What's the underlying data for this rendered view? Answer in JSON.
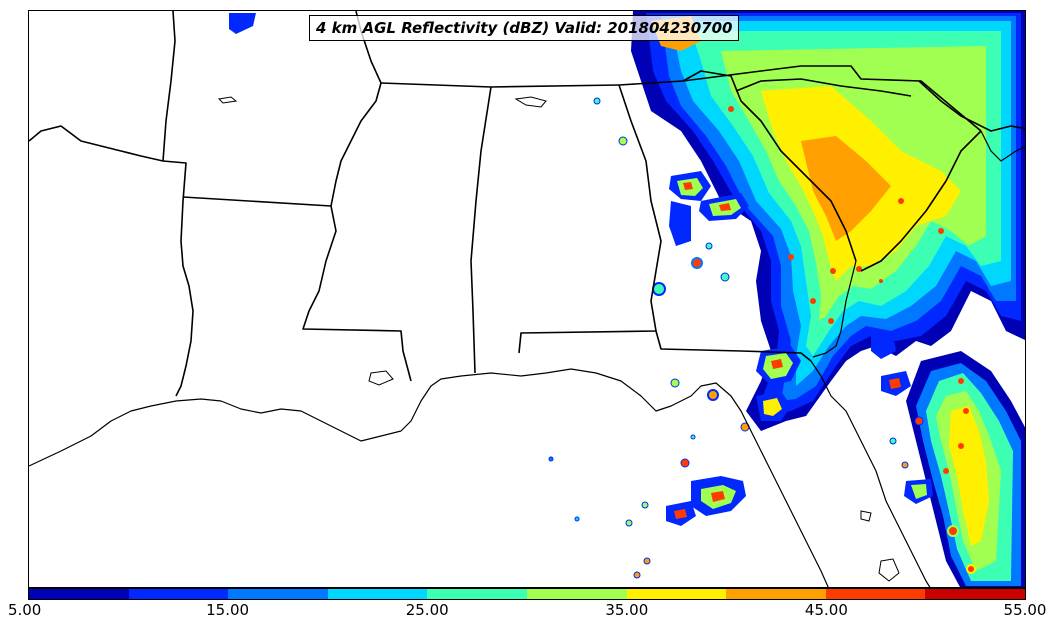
{
  "title": "4 km AGL Reflectivity (dBZ) Valid: 201804230700",
  "colorbar": {
    "min": 5.0,
    "max": 55.0,
    "step": 5,
    "colors": [
      "#0000b4",
      "#0028ff",
      "#0078ff",
      "#00d7ff",
      "#3cffb4",
      "#a0ff50",
      "#fff000",
      "#ffa000",
      "#ff3c00",
      "#c80000"
    ],
    "tick_labels": [
      "5.00",
      "15.00",
      "25.00",
      "35.00",
      "45.00",
      "55.00"
    ]
  },
  "map": {
    "background": "#ffffff",
    "boundary_color": "#000000"
  }
}
